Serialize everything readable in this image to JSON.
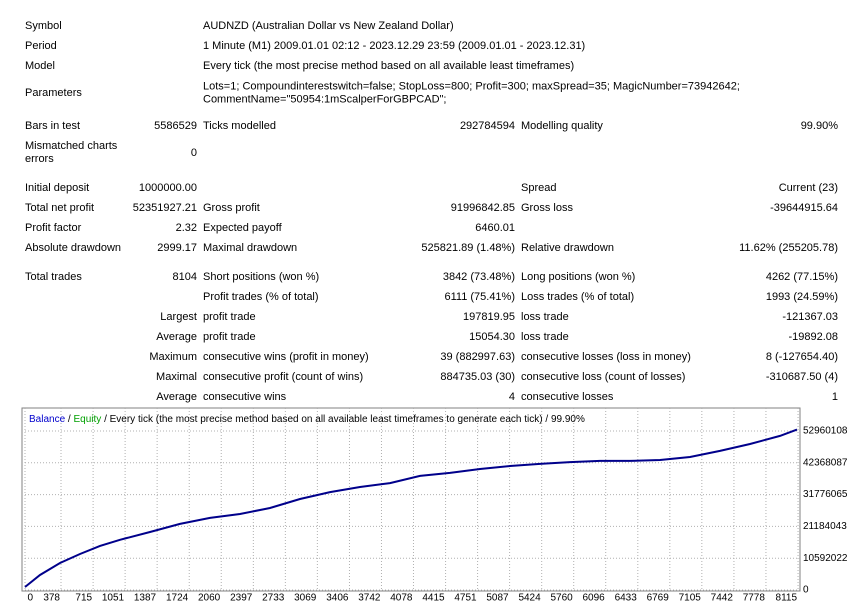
{
  "report": {
    "rows": [
      {
        "label": "Symbol",
        "text": [
          "AUDNZD (Australian Dollar vs New Zealand Dollar)"
        ]
      },
      {
        "label": "Period",
        "text": [
          "1 Minute (M1) 2009.01.01 02:12 - 2023.12.29 23:59 (2009.01.01 - 2023.12.31)"
        ]
      },
      {
        "label": "Model",
        "text": [
          "Every tick (the most precise method based on all available least timeframes)"
        ]
      },
      {
        "label": "Parameters",
        "text": [
          "Lots=1; Compoundinterestswitch=false; StopLoss=800; Profit=300; maxSpread=35; MagicNumber=73942642;",
          "CommentName=\"50954:1mScalperForGBPCAD\";"
        ]
      },
      {
        "label": "Bars in test",
        "value": "5586529",
        "label2": "Ticks modelled",
        "value2": "292784594",
        "label3": "Modelling quality",
        "value3": "99.90%"
      },
      {
        "label": [
          "Mismatched charts",
          "errors"
        ],
        "value": "0"
      },
      {
        "label": "Initial deposit",
        "value": "1000000.00",
        "label3": "Spread",
        "value3": "Current (23)"
      },
      {
        "label": "Total net profit",
        "value": "52351927.21",
        "label2": "Gross profit",
        "value2": "91996842.85",
        "label3": "Gross loss",
        "value3": "-39644915.64"
      },
      {
        "label": "Profit factor",
        "value": "2.32",
        "label2": "Expected payoff",
        "value2": "6460.01"
      },
      {
        "label": "Absolute drawdown",
        "value": "2999.17",
        "label2": "Maximal drawdown",
        "value2": "525821.89 (1.48%)",
        "label3": "Relative drawdown",
        "value3": "11.62% (255205.78)"
      },
      {
        "label": "Total trades",
        "value": "8104",
        "label2": "Short positions (won %)",
        "value2": "3842 (73.48%)",
        "label3": "Long positions (won %)",
        "value3": "4262 (77.15%)"
      },
      {
        "label2": "Profit trades (% of total)",
        "value2": "6111 (75.41%)",
        "label3": "Loss trades (% of total)",
        "value3": "1993 (24.59%)"
      },
      {
        "value": "Largest",
        "label2": "profit trade",
        "value2": "197819.95",
        "label3": "loss trade",
        "value3": "-121367.03"
      },
      {
        "value": "Average",
        "label2": "profit trade",
        "value2": "15054.30",
        "label3": "loss trade",
        "value3": "-19892.08"
      },
      {
        "value": "Maximum",
        "label2": "consecutive wins (profit in money)",
        "value2": "39 (882997.63)",
        "label3": "consecutive losses (loss in money)",
        "value3": "8 (-127654.40)"
      },
      {
        "value": "Maximal",
        "label2": "consecutive profit (count of wins)",
        "value2": "884735.03 (30)",
        "label3": "consecutive loss (count of losses)",
        "value3": "-310687.50 (4)"
      },
      {
        "value": "Average",
        "label2": "consecutive wins",
        "value2": "4",
        "label3": "consecutive losses",
        "value3": "1"
      }
    ]
  },
  "chart_data": {
    "type": "line",
    "separator": "/",
    "equity_label": "Equity",
    "subtitle": "/ Every tick (the most precise method based on all available least timeframes to generate each tick) / 99.90%",
    "x": [
      0,
      157,
      367,
      577,
      787,
      997,
      1312,
      1627,
      1942,
      2257,
      2572,
      2887,
      3202,
      3517,
      3832,
      4146,
      4461,
      4776,
      5091,
      5406,
      5721,
      6036,
      6351,
      6666,
      6981,
      7296,
      7611,
      7926,
      8104
    ],
    "series": [
      {
        "name": "Balance",
        "color": "#00008b",
        "values": [
          1000000,
          5000000,
          9000000,
          12000000,
          14700000,
          16700000,
          19300000,
          22000000,
          24000000,
          25300000,
          27300000,
          30300000,
          32600000,
          34300000,
          35600000,
          38000000,
          39000000,
          40300000,
          41300000,
          42000000,
          42600000,
          43000000,
          43000000,
          43300000,
          44300000,
          46300000,
          48600000,
          51300000,
          53400000
        ]
      }
    ],
    "equity_color": "#00a000",
    "xlim": [
      0,
      8104
    ],
    "xticks": [
      0,
      378,
      715,
      1051,
      1387,
      1724,
      2060,
      2397,
      2733,
      3069,
      3406,
      3742,
      4078,
      4415,
      4751,
      5087,
      5424,
      5760,
      6096,
      6433,
      6769,
      7105,
      7442,
      7778,
      8115
    ],
    "ylim": [
      0,
      60600000
    ],
    "yticks": [
      0,
      10592022,
      21184043,
      31776065,
      42368087,
      52960108
    ],
    "grid": true
  }
}
